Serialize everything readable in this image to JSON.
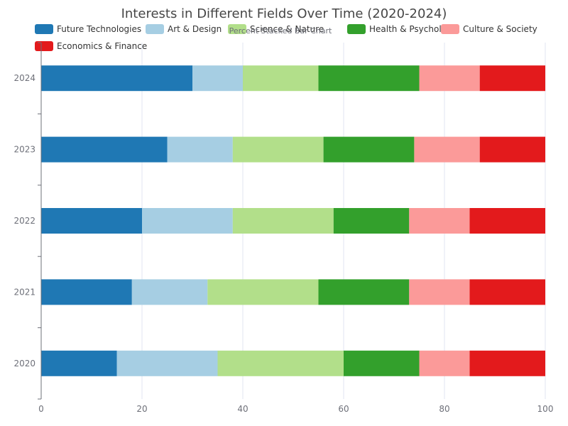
{
  "chart_data": {
    "type": "bar",
    "orientation": "horizontal",
    "stacked": "percent",
    "title": "Interests in Different Fields Over Time (2020-2024)",
    "subtitle": "Percent Stacked Bar Chart",
    "categories": [
      "2020",
      "2021",
      "2022",
      "2023",
      "2024"
    ],
    "series": [
      {
        "name": "Future Technologies",
        "color": "#1f78b4",
        "values": [
          15,
          18,
          20,
          25,
          30
        ]
      },
      {
        "name": "Art & Design",
        "color": "#a6cee3",
        "values": [
          20,
          15,
          18,
          13,
          10
        ]
      },
      {
        "name": "Science & Nature",
        "color": "#b2df8a",
        "values": [
          25,
          22,
          20,
          18,
          15
        ]
      },
      {
        "name": "Health & Psychology",
        "color": "#33a02c",
        "values": [
          15,
          18,
          15,
          18,
          20
        ]
      },
      {
        "name": "Culture & Society",
        "color": "#fb9a99",
        "values": [
          10,
          12,
          12,
          13,
          12
        ]
      },
      {
        "name": "Economics & Finance",
        "color": "#e31a1c",
        "values": [
          15,
          15,
          15,
          13,
          13
        ]
      }
    ],
    "xlim": [
      0,
      100
    ],
    "xticks": [
      "0",
      "20",
      "40",
      "60",
      "80",
      "100"
    ],
    "grid": true,
    "legend_position": "top"
  }
}
